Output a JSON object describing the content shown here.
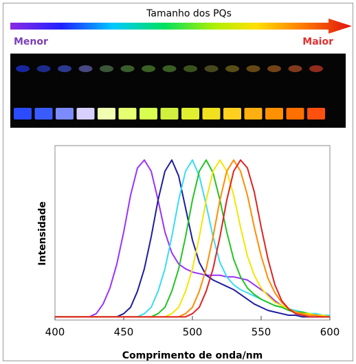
{
  "header": {
    "title": "Tamanho dos PQs",
    "left_label": "Menor",
    "right_label": "Maior"
  },
  "chart_data": {
    "type": "line",
    "xlabel": "Comprimento de onda/nm",
    "ylabel": "Intensidade",
    "xlim": [
      400,
      600
    ],
    "xticks": [
      400,
      450,
      500,
      550,
      600
    ],
    "ylim": [
      0,
      1.09
    ],
    "x": [
      400,
      405,
      410,
      415,
      420,
      425,
      430,
      435,
      440,
      445,
      450,
      455,
      460,
      465,
      470,
      475,
      480,
      485,
      490,
      495,
      500,
      505,
      510,
      515,
      520,
      525,
      530,
      535,
      540,
      545,
      550,
      555,
      560,
      565,
      570,
      575,
      580,
      585,
      590,
      595,
      600
    ],
    "series": [
      {
        "color": "#9b30ff",
        "values": [
          0.02,
          0.02,
          0.02,
          0.02,
          0.02,
          0.02,
          0.04,
          0.1,
          0.2,
          0.35,
          0.55,
          0.78,
          0.95,
          1,
          0.93,
          0.75,
          0.55,
          0.42,
          0.35,
          0.32,
          0.3,
          0.29,
          0.28,
          0.28,
          0.28,
          0.27,
          0.27,
          0.26,
          0.25,
          0.22,
          0.19,
          0.16,
          0.12,
          0.09,
          0.07,
          0.05,
          0.04,
          0.03,
          0.03,
          0.02,
          0.02
        ]
      },
      {
        "color": "#1c1c9e",
        "values": [
          0.02,
          0.02,
          0.02,
          0.02,
          0.02,
          0.02,
          0.02,
          0.02,
          0.02,
          0.02,
          0.04,
          0.08,
          0.18,
          0.32,
          0.52,
          0.75,
          0.93,
          1,
          0.9,
          0.7,
          0.5,
          0.36,
          0.28,
          0.25,
          0.23,
          0.21,
          0.19,
          0.16,
          0.13,
          0.1,
          0.08,
          0.06,
          0.05,
          0.04,
          0.03,
          0.03,
          0.02,
          0.02,
          0.02,
          0.02,
          0.02
        ]
      },
      {
        "color": "#35dcf5",
        "values": [
          0.02,
          0.02,
          0.02,
          0.02,
          0.02,
          0.02,
          0.02,
          0.02,
          0.02,
          0.02,
          0.02,
          0.02,
          0.02,
          0.04,
          0.08,
          0.18,
          0.32,
          0.52,
          0.75,
          0.93,
          1,
          0.9,
          0.72,
          0.52,
          0.36,
          0.27,
          0.22,
          0.19,
          0.17,
          0.15,
          0.13,
          0.11,
          0.09,
          0.08,
          0.07,
          0.06,
          0.05,
          0.04,
          0.04,
          0.03,
          0.03
        ]
      },
      {
        "color": "#22c322",
        "values": [
          0.02,
          0.02,
          0.02,
          0.02,
          0.02,
          0.02,
          0.02,
          0.02,
          0.02,
          0.02,
          0.02,
          0.02,
          0.02,
          0.02,
          0.02,
          0.04,
          0.08,
          0.18,
          0.32,
          0.52,
          0.75,
          0.93,
          1,
          0.92,
          0.75,
          0.55,
          0.38,
          0.27,
          0.2,
          0.16,
          0.13,
          0.11,
          0.09,
          0.08,
          0.06,
          0.05,
          0.05,
          0.04,
          0.03,
          0.03,
          0.02
        ]
      },
      {
        "color": "#f2e600",
        "values": [
          0.02,
          0.02,
          0.02,
          0.02,
          0.02,
          0.02,
          0.02,
          0.02,
          0.02,
          0.02,
          0.02,
          0.02,
          0.02,
          0.02,
          0.02,
          0.02,
          0.02,
          0.04,
          0.08,
          0.18,
          0.32,
          0.52,
          0.75,
          0.93,
          1,
          0.93,
          0.78,
          0.58,
          0.4,
          0.28,
          0.2,
          0.15,
          0.11,
          0.09,
          0.07,
          0.05,
          0.04,
          0.04,
          0.03,
          0.03,
          0.02
        ]
      },
      {
        "color": "#ff8c00",
        "values": [
          0.02,
          0.02,
          0.02,
          0.02,
          0.02,
          0.02,
          0.02,
          0.02,
          0.02,
          0.02,
          0.02,
          0.02,
          0.02,
          0.02,
          0.02,
          0.02,
          0.02,
          0.02,
          0.02,
          0.04,
          0.08,
          0.18,
          0.32,
          0.52,
          0.75,
          0.93,
          1,
          0.93,
          0.78,
          0.58,
          0.4,
          0.26,
          0.17,
          0.11,
          0.07,
          0.05,
          0.04,
          0.03,
          0.03,
          0.02,
          0.02
        ]
      },
      {
        "color": "#e02020",
        "values": [
          0.02,
          0.02,
          0.02,
          0.02,
          0.02,
          0.02,
          0.02,
          0.02,
          0.02,
          0.02,
          0.02,
          0.02,
          0.02,
          0.02,
          0.02,
          0.02,
          0.02,
          0.02,
          0.02,
          0.02,
          0.04,
          0.08,
          0.18,
          0.32,
          0.52,
          0.75,
          0.93,
          1,
          0.95,
          0.8,
          0.58,
          0.38,
          0.22,
          0.12,
          0.07,
          0.04,
          0.03,
          0.02,
          0.02,
          0.02,
          0.02
        ]
      }
    ]
  }
}
